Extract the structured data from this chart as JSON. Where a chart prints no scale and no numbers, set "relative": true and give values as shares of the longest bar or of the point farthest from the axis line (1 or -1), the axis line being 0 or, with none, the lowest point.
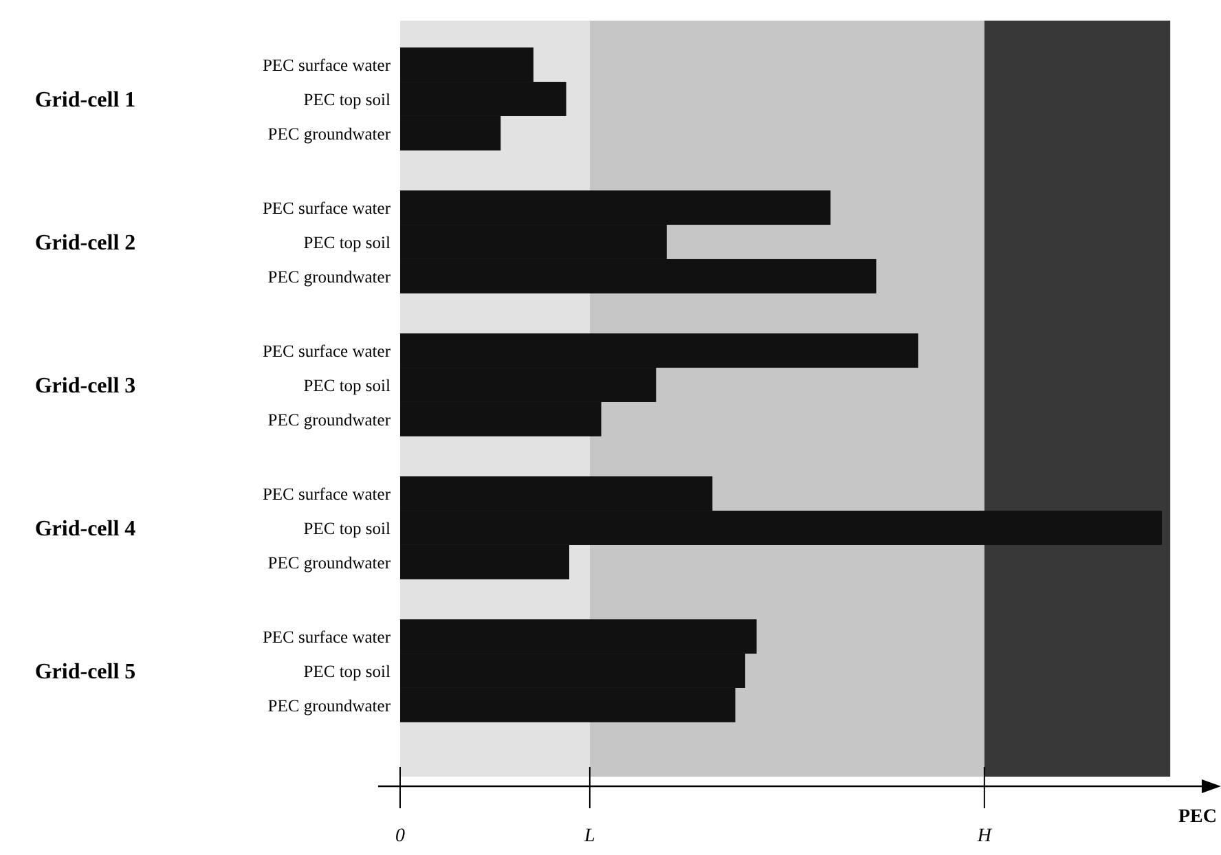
{
  "chart_data": {
    "type": "bar",
    "orientation": "horizontal",
    "relative": true,
    "xlabel": "PEC",
    "legend": false,
    "categories": [
      "Grid-cell 1",
      "Grid-cell 2",
      "Grid-cell 3",
      "Grid-cell 4",
      "Grid-cell 5"
    ],
    "series": [
      {
        "name": "PEC surface water",
        "color": "#111111",
        "values": [
          0.175,
          0.565,
          0.68,
          0.41,
          0.468
        ]
      },
      {
        "name": "PEC top soil",
        "color": "#111111",
        "values": [
          0.218,
          0.35,
          0.336,
          1,
          0.453
        ]
      },
      {
        "name": "PEC groundwater",
        "color": "#111111",
        "values": [
          0.132,
          0.625,
          0.264,
          0.222,
          0.44
        ]
      }
    ],
    "ref_lines": [
      {
        "axis": "x",
        "value": 0,
        "label": "0"
      },
      {
        "axis": "x",
        "value": 0.249,
        "label": "L"
      },
      {
        "axis": "x",
        "value": 0.767,
        "label": "H"
      }
    ],
    "bands": [
      {
        "axis": "x",
        "from": 0,
        "to": 0.249,
        "color": "#e2e2e2"
      },
      {
        "axis": "x",
        "from": 0.249,
        "to": 0.767,
        "color": "#c6c6c6"
      },
      {
        "axis": "x",
        "from": 0.767,
        "to": 1.011,
        "color": "#383838"
      }
    ]
  }
}
